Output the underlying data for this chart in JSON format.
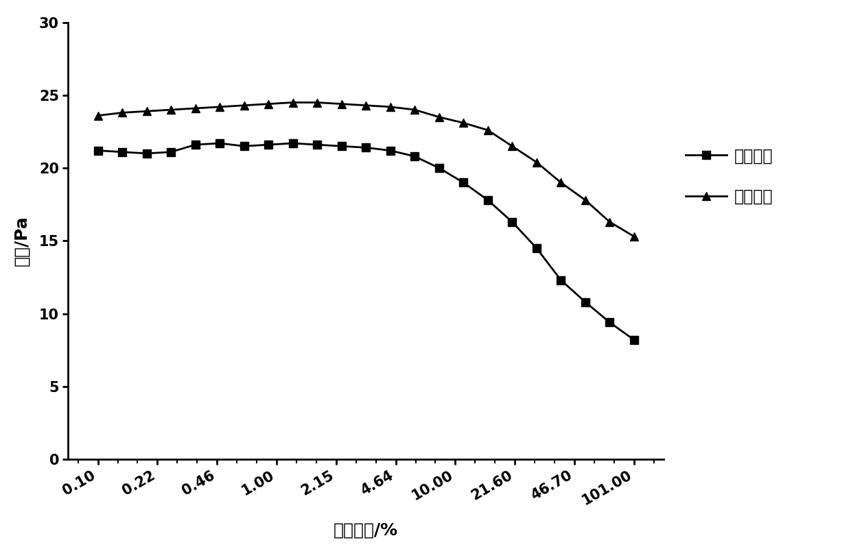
{
  "x_labels": [
    "0.10",
    "0.22",
    "0.46",
    "1.00",
    "2.15",
    "4.64",
    "10.00",
    "21.60",
    "46.70",
    "101.00"
  ],
  "storage_modulus": [
    21.2,
    21.1,
    21.0,
    21.1,
    21.6,
    21.7,
    21.5,
    21.6,
    21.7,
    21.6,
    21.5,
    21.4,
    21.2,
    20.8,
    20.0,
    19.0,
    17.8,
    16.3,
    14.5,
    12.3,
    10.8,
    9.4,
    8.2
  ],
  "loss_modulus": [
    23.6,
    23.8,
    23.9,
    24.0,
    24.1,
    24.2,
    24.3,
    24.4,
    24.5,
    24.5,
    24.4,
    24.3,
    24.2,
    24.0,
    23.5,
    23.1,
    22.6,
    21.5,
    20.4,
    19.0,
    17.8,
    16.3,
    15.3
  ],
  "xlabel": "剪切应变/%",
  "ylabel": "模量/Pa",
  "legend_storage": "储能模量",
  "legend_loss": "损耗模量",
  "ylim": [
    0,
    30
  ],
  "yticks": [
    0,
    5,
    10,
    15,
    20,
    25,
    30
  ],
  "line_color": "#000000",
  "marker_storage": "s",
  "marker_loss": "^",
  "markersize": 8,
  "linewidth": 2.0,
  "bg_color": "#ffffff",
  "n_points": 23,
  "n_labeled": 10
}
